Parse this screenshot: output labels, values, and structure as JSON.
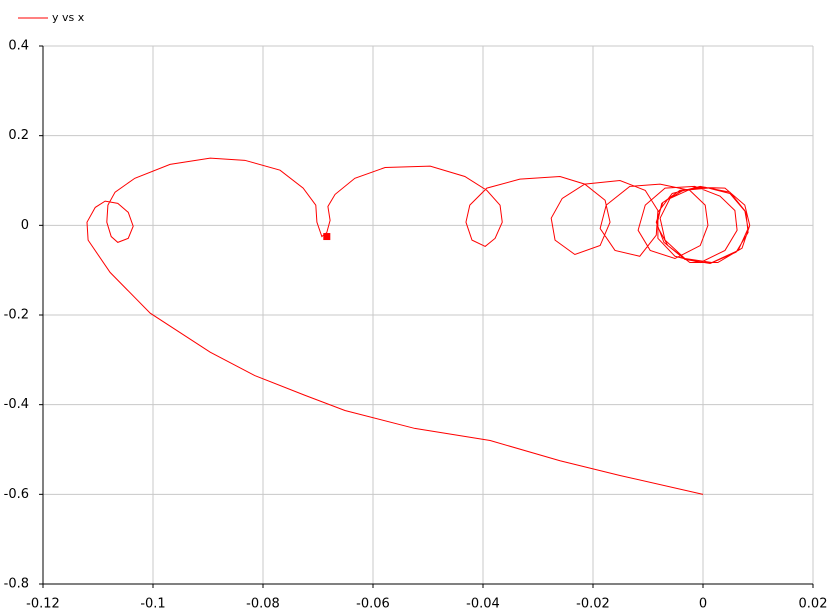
{
  "chart_data": {
    "type": "line",
    "series": [
      {
        "name": "y vs x",
        "color": "#ff0000",
        "x": [
          0,
          -0.0151,
          -0.026,
          -0.0387,
          -0.0524,
          -0.0651,
          -0.0724,
          -0.0815,
          -0.0896,
          -0.1005,
          -0.1078,
          -0.1118,
          -0.112,
          -0.1105,
          -0.1087,
          -0.1064,
          -0.1045,
          -0.1036,
          -0.1045,
          -0.1064,
          -0.1076,
          -0.1084,
          -0.1082,
          -0.1069,
          -0.1033,
          -0.0969,
          -0.0896,
          -0.0833,
          -0.0769,
          -0.0727,
          -0.0704,
          -0.0702,
          -0.0693,
          -0.0684,
          -0.0678,
          -0.0682,
          -0.0669,
          -0.0633,
          -0.0578,
          -0.0496,
          -0.0433,
          -0.0393,
          -0.0369,
          -0.0365,
          -0.0378,
          -0.0396,
          -0.042,
          -0.0431,
          -0.0424,
          -0.0393,
          -0.0333,
          -0.026,
          -0.0215,
          -0.0178,
          -0.0169,
          -0.0187,
          -0.0233,
          -0.0269,
          -0.0276,
          -0.0256,
          -0.0215,
          -0.0151,
          -0.0105,
          -0.0082,
          -0.0085,
          -0.0115,
          -0.016,
          -0.0187,
          -0.0176,
          -0.0133,
          -0.0078,
          -0.0024,
          0.0004,
          0.0009,
          -0.0005,
          -0.0051,
          -0.0096,
          -0.0118,
          -0.0105,
          -0.0069,
          -0.0015,
          0.0031,
          0.0058,
          0.0062,
          0.004,
          -0.0005,
          -0.0051,
          -0.0082,
          -0.0082,
          -0.0056,
          -0.0005,
          0.0049,
          0.0076,
          0.0082,
          0.0064,
          0.0016,
          -0.0033,
          -0.0069,
          -0.0078,
          -0.006,
          -0.0015,
          0.004,
          0.0076,
          0.0085,
          0.0071,
          0.0027,
          -0.0024,
          -0.0064,
          -0.0084,
          -0.0075,
          -0.0042,
          0.0004,
          0.0049,
          0.0078,
          0.0082,
          0.006,
          0.0013,
          -0.0033,
          -0.0071,
          -0.0085,
          -0.0073,
          -0.0036,
          0.0009
        ],
        "values": [
          -0.6,
          -0.558,
          -0.525,
          -0.48,
          -0.453,
          -0.413,
          -0.379,
          -0.335,
          -0.283,
          -0.196,
          -0.105,
          -0.033,
          0.007,
          0.04,
          0.054,
          0.049,
          0.029,
          -0.002,
          -0.029,
          -0.038,
          -0.025,
          0.007,
          0.045,
          0.074,
          0.105,
          0.136,
          0.15,
          0.145,
          0.123,
          0.083,
          0.045,
          0.007,
          -0.025,
          -0.016,
          0.011,
          0.042,
          0.069,
          0.105,
          0.129,
          0.132,
          0.109,
          0.078,
          0.045,
          0.007,
          -0.029,
          -0.047,
          -0.033,
          0.007,
          0.045,
          0.083,
          0.103,
          0.109,
          0.092,
          0.056,
          0.007,
          -0.045,
          -0.065,
          -0.033,
          0.016,
          0.06,
          0.092,
          0.1,
          0.078,
          0.033,
          -0.022,
          -0.069,
          -0.056,
          -0.007,
          0.045,
          0.087,
          0.092,
          0.078,
          0.045,
          0,
          -0.045,
          -0.074,
          -0.056,
          -0.011,
          0.045,
          0.083,
          0.087,
          0.065,
          0.033,
          -0.011,
          -0.056,
          -0.083,
          -0.069,
          -0.029,
          0.029,
          0.071,
          0.087,
          0.074,
          0.033,
          -0.007,
          -0.056,
          -0.083,
          -0.074,
          -0.033,
          0.016,
          0.06,
          0.085,
          0.083,
          0.045,
          0,
          -0.051,
          -0.083,
          -0.083,
          -0.045,
          0,
          0.049,
          0.078,
          0.085,
          0.071,
          0.029,
          -0.016,
          -0.06,
          -0.085,
          -0.076,
          -0.038,
          0.007,
          0.051,
          0.078,
          0.083
        ]
      }
    ],
    "marker": {
      "x": -0.0684,
      "y": -0.025
    },
    "xlim": [
      -0.12,
      0.02
    ],
    "xticks": [
      -0.12,
      -0.1,
      -0.08,
      -0.06,
      -0.04,
      -0.02,
      0,
      0.02
    ],
    "ylim": [
      -0.8,
      0.4
    ],
    "yticks": [
      -0.8,
      -0.6,
      -0.4,
      -0.2,
      0,
      0.2,
      0.4
    ],
    "grid": true
  }
}
